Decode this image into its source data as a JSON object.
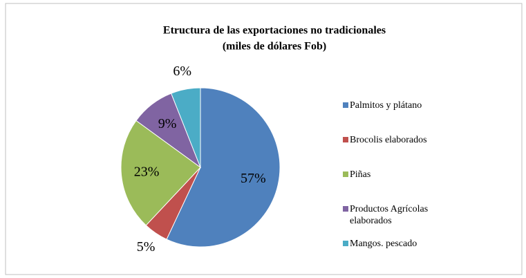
{
  "chart_data": {
    "type": "pie",
    "title": "Etructura de las exportaciones no tradicionales",
    "subtitle": "(miles de dólares Fob)",
    "categories": [
      "Palmitos y plátano",
      "Brocolis elaborados",
      "Piñas",
      "Productos Agrícolas elaborados",
      "Mangos. pescado"
    ],
    "values": [
      57,
      5,
      23,
      9,
      6
    ],
    "colors": [
      "#4f81bd",
      "#c0504d",
      "#9bbb59",
      "#8064a2",
      "#4bacc6"
    ],
    "legend": "right"
  }
}
